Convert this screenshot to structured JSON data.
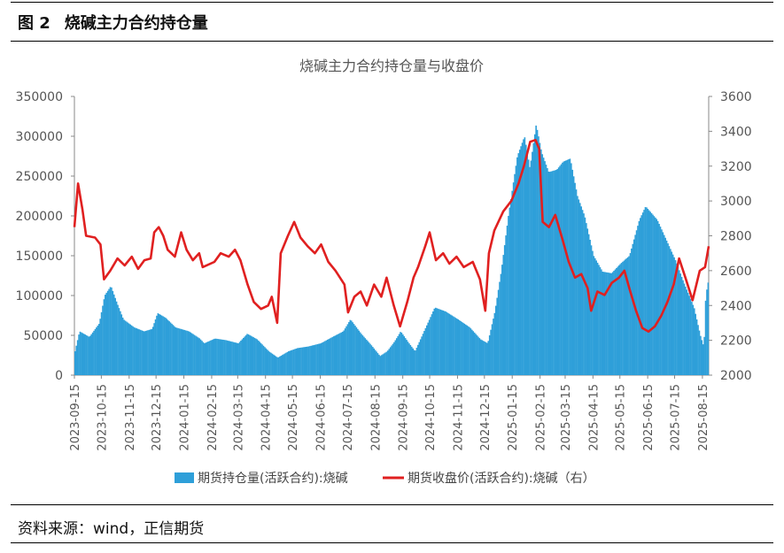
{
  "figure": {
    "label": "图 2",
    "title": "烧碱主力合约持仓量"
  },
  "source": "资料来源：wind，正信期货",
  "colors": {
    "bar": "#2E9FD9",
    "line": "#E02020"
  },
  "chart_data": {
    "type": "bar+line",
    "title": "烧碱主力合约持仓量与收盘价",
    "y_left": {
      "min": 0,
      "max": 350000,
      "step": 50000,
      "ticks": [
        "0",
        "50000",
        "100000",
        "150000",
        "200000",
        "250000",
        "300000",
        "350000"
      ]
    },
    "y_right": {
      "min": 2000,
      "max": 3600,
      "step": 200,
      "ticks": [
        "2000",
        "2200",
        "2400",
        "2600",
        "2800",
        "3000",
        "3200",
        "3400",
        "3600"
      ]
    },
    "x_ticks": [
      "2023-09-15",
      "2023-10-15",
      "2023-11-15",
      "2023-12-15",
      "2024-01-15",
      "2024-02-15",
      "2024-03-15",
      "2024-04-15",
      "2024-05-15",
      "2024-06-15",
      "2024-07-15",
      "2024-08-15",
      "2024-09-15",
      "2024-10-15",
      "2024-11-15",
      "2024-12-15",
      "2025-01-15",
      "2025-02-15",
      "2025-03-15",
      "2025-04-15",
      "2025-05-15",
      "2025-06-15",
      "2025-07-15",
      "2025-08-15"
    ],
    "x_range": [
      "2023-09-15",
      "2025-08-22"
    ],
    "legend": {
      "position": "bottom",
      "bar_label": "期货持仓量(活跃合约):烧碱",
      "line_label": "期货收盘价(活跃合约):烧碱（右）"
    },
    "series": [
      {
        "name": "期货持仓量(活跃合约):烧碱",
        "type": "bar",
        "axis": "left",
        "points": [
          [
            "2023-09-15",
            30000
          ],
          [
            "2023-09-20",
            55000
          ],
          [
            "2023-10-01",
            48000
          ],
          [
            "2023-10-12",
            65000
          ],
          [
            "2023-10-18",
            100000
          ],
          [
            "2023-10-25",
            112000
          ],
          [
            "2023-11-01",
            90000
          ],
          [
            "2023-11-08",
            70000
          ],
          [
            "2023-11-20",
            60000
          ],
          [
            "2023-12-01",
            55000
          ],
          [
            "2023-12-10",
            58000
          ],
          [
            "2023-12-16",
            78000
          ],
          [
            "2023-12-25",
            72000
          ],
          [
            "2024-01-05",
            60000
          ],
          [
            "2024-01-20",
            55000
          ],
          [
            "2024-02-01",
            46000
          ],
          [
            "2024-02-06",
            40000
          ],
          [
            "2024-02-18",
            46000
          ],
          [
            "2024-03-01",
            44000
          ],
          [
            "2024-03-15",
            40000
          ],
          [
            "2024-03-25",
            52000
          ],
          [
            "2024-04-05",
            45000
          ],
          [
            "2024-04-18",
            30000
          ],
          [
            "2024-04-28",
            22000
          ],
          [
            "2024-05-10",
            30000
          ],
          [
            "2024-05-20",
            34000
          ],
          [
            "2024-06-01",
            36000
          ],
          [
            "2024-06-15",
            40000
          ],
          [
            "2024-06-28",
            48000
          ],
          [
            "2024-07-10",
            55000
          ],
          [
            "2024-07-18",
            70000
          ],
          [
            "2024-07-30",
            52000
          ],
          [
            "2024-08-10",
            38000
          ],
          [
            "2024-08-20",
            24000
          ],
          [
            "2024-08-28",
            30000
          ],
          [
            "2024-09-05",
            42000
          ],
          [
            "2024-09-12",
            55000
          ],
          [
            "2024-09-20",
            42000
          ],
          [
            "2024-09-28",
            30000
          ],
          [
            "2024-10-10",
            60000
          ],
          [
            "2024-10-20",
            85000
          ],
          [
            "2024-11-01",
            80000
          ],
          [
            "2024-11-15",
            70000
          ],
          [
            "2024-11-28",
            60000
          ],
          [
            "2024-12-10",
            45000
          ],
          [
            "2024-12-18",
            40000
          ],
          [
            "2024-12-26",
            80000
          ],
          [
            "2025-01-02",
            130000
          ],
          [
            "2025-01-10",
            200000
          ],
          [
            "2025-01-20",
            275000
          ],
          [
            "2025-01-28",
            300000
          ],
          [
            "2025-02-03",
            260000
          ],
          [
            "2025-02-10",
            315000
          ],
          [
            "2025-02-16",
            280000
          ],
          [
            "2025-02-24",
            255000
          ],
          [
            "2025-03-05",
            258000
          ],
          [
            "2025-03-12",
            268000
          ],
          [
            "2025-03-20",
            272000
          ],
          [
            "2025-03-28",
            225000
          ],
          [
            "2025-04-05",
            200000
          ],
          [
            "2025-04-15",
            150000
          ],
          [
            "2025-04-25",
            130000
          ],
          [
            "2025-05-05",
            128000
          ],
          [
            "2025-05-15",
            140000
          ],
          [
            "2025-05-25",
            150000
          ],
          [
            "2025-06-05",
            195000
          ],
          [
            "2025-06-12",
            212000
          ],
          [
            "2025-06-25",
            195000
          ],
          [
            "2025-07-05",
            170000
          ],
          [
            "2025-07-15",
            145000
          ],
          [
            "2025-07-25",
            115000
          ],
          [
            "2025-08-05",
            85000
          ],
          [
            "2025-08-12",
            50000
          ],
          [
            "2025-08-16",
            35000
          ],
          [
            "2025-08-18",
            100000
          ],
          [
            "2025-08-22",
            125000
          ]
        ]
      },
      {
        "name": "期货收盘价(活跃合约):烧碱（右）",
        "type": "line",
        "axis": "right",
        "points": [
          [
            "2023-09-15",
            2850
          ],
          [
            "2023-09-19",
            3100
          ],
          [
            "2023-09-24",
            2950
          ],
          [
            "2023-09-28",
            2800
          ],
          [
            "2023-10-08",
            2790
          ],
          [
            "2023-10-14",
            2750
          ],
          [
            "2023-10-18",
            2550
          ],
          [
            "2023-10-25",
            2600
          ],
          [
            "2023-11-02",
            2670
          ],
          [
            "2023-11-10",
            2630
          ],
          [
            "2023-11-18",
            2680
          ],
          [
            "2023-11-25",
            2610
          ],
          [
            "2023-12-02",
            2660
          ],
          [
            "2023-12-09",
            2670
          ],
          [
            "2023-12-13",
            2820
          ],
          [
            "2023-12-18",
            2850
          ],
          [
            "2023-12-23",
            2800
          ],
          [
            "2023-12-28",
            2720
          ],
          [
            "2024-01-05",
            2680
          ],
          [
            "2024-01-12",
            2820
          ],
          [
            "2024-01-18",
            2720
          ],
          [
            "2024-01-25",
            2660
          ],
          [
            "2024-02-01",
            2700
          ],
          [
            "2024-02-05",
            2620
          ],
          [
            "2024-02-18",
            2650
          ],
          [
            "2024-02-25",
            2700
          ],
          [
            "2024-03-05",
            2680
          ],
          [
            "2024-03-12",
            2720
          ],
          [
            "2024-03-18",
            2660
          ],
          [
            "2024-03-26",
            2520
          ],
          [
            "2024-04-02",
            2420
          ],
          [
            "2024-04-10",
            2380
          ],
          [
            "2024-04-18",
            2400
          ],
          [
            "2024-04-22",
            2450
          ],
          [
            "2024-04-28",
            2300
          ],
          [
            "2024-05-02",
            2700
          ],
          [
            "2024-05-10",
            2800
          ],
          [
            "2024-05-17",
            2880
          ],
          [
            "2024-05-24",
            2790
          ],
          [
            "2024-06-01",
            2740
          ],
          [
            "2024-06-09",
            2700
          ],
          [
            "2024-06-16",
            2750
          ],
          [
            "2024-06-24",
            2650
          ],
          [
            "2024-07-02",
            2600
          ],
          [
            "2024-07-12",
            2520
          ],
          [
            "2024-07-16",
            2360
          ],
          [
            "2024-07-23",
            2450
          ],
          [
            "2024-07-30",
            2480
          ],
          [
            "2024-08-06",
            2400
          ],
          [
            "2024-08-14",
            2520
          ],
          [
            "2024-08-22",
            2450
          ],
          [
            "2024-08-28",
            2560
          ],
          [
            "2024-09-05",
            2400
          ],
          [
            "2024-09-12",
            2280
          ],
          [
            "2024-09-20",
            2420
          ],
          [
            "2024-09-27",
            2560
          ],
          [
            "2024-10-02",
            2620
          ],
          [
            "2024-10-10",
            2740
          ],
          [
            "2024-10-15",
            2820
          ],
          [
            "2024-10-22",
            2660
          ],
          [
            "2024-10-30",
            2700
          ],
          [
            "2024-11-06",
            2640
          ],
          [
            "2024-11-14",
            2680
          ],
          [
            "2024-11-22",
            2620
          ],
          [
            "2024-12-02",
            2650
          ],
          [
            "2024-12-10",
            2550
          ],
          [
            "2024-12-16",
            2370
          ],
          [
            "2024-12-20",
            2700
          ],
          [
            "2024-12-26",
            2830
          ],
          [
            "2025-01-05",
            2940
          ],
          [
            "2025-01-14",
            3000
          ],
          [
            "2025-01-22",
            3100
          ],
          [
            "2025-01-28",
            3200
          ],
          [
            "2025-02-04",
            3340
          ],
          [
            "2025-02-10",
            3350
          ],
          [
            "2025-02-14",
            3300
          ],
          [
            "2025-02-18",
            2880
          ],
          [
            "2025-02-25",
            2850
          ],
          [
            "2025-03-04",
            2920
          ],
          [
            "2025-03-12",
            2780
          ],
          [
            "2025-03-19",
            2650
          ],
          [
            "2025-03-26",
            2560
          ],
          [
            "2025-04-02",
            2580
          ],
          [
            "2025-04-09",
            2500
          ],
          [
            "2025-04-13",
            2370
          ],
          [
            "2025-04-20",
            2480
          ],
          [
            "2025-04-28",
            2460
          ],
          [
            "2025-05-06",
            2530
          ],
          [
            "2025-05-14",
            2560
          ],
          [
            "2025-05-20",
            2600
          ],
          [
            "2025-05-26",
            2490
          ],
          [
            "2025-06-02",
            2370
          ],
          [
            "2025-06-09",
            2270
          ],
          [
            "2025-06-16",
            2250
          ],
          [
            "2025-06-23",
            2280
          ],
          [
            "2025-06-30",
            2340
          ],
          [
            "2025-07-07",
            2420
          ],
          [
            "2025-07-14",
            2520
          ],
          [
            "2025-07-20",
            2670
          ],
          [
            "2025-07-27",
            2560
          ],
          [
            "2025-08-04",
            2430
          ],
          [
            "2025-08-12",
            2600
          ],
          [
            "2025-08-18",
            2620
          ],
          [
            "2025-08-22",
            2740
          ]
        ]
      }
    ]
  }
}
